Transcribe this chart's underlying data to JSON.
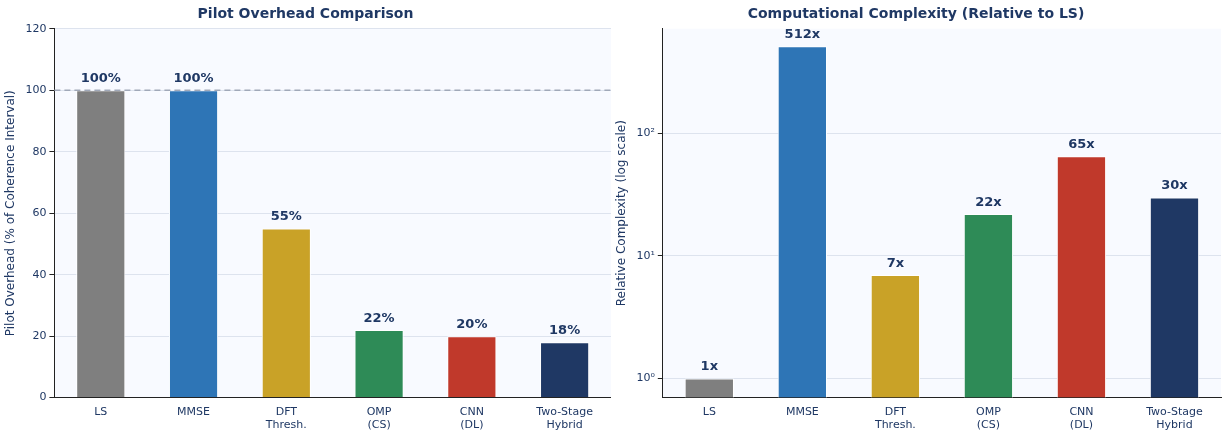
{
  "chart_data": [
    {
      "type": "bar",
      "title": "Pilot Overhead Comparison",
      "ylabel": "Pilot Overhead (% of Coherence Interval)",
      "categories": [
        "LS",
        "MMSE",
        "DFT\nThresh.",
        "OMP\n(CS)",
        "CNN\n(DL)",
        "Two-Stage\nHybrid"
      ],
      "values": [
        100,
        100,
        55,
        22,
        20,
        18
      ],
      "colors": [
        "#7f7f7f",
        "#2e75b6",
        "#c9a227",
        "#2e8b57",
        "#c0392b",
        "#1f3864"
      ],
      "value_labels": [
        "100%",
        "100%",
        "55%",
        "22%",
        "20%",
        "18%"
      ],
      "ylim": [
        0,
        120
      ],
      "yticks": [
        0,
        20,
        40,
        60,
        80,
        100,
        120
      ],
      "grid": "y",
      "ref_lines": [
        {
          "axis": "y",
          "value": 100,
          "color": "#a0a8b8",
          "line_style": "dashed"
        }
      ]
    },
    {
      "type": "bar",
      "title": "Computational Complexity (Relative to LS)",
      "ylabel": "Relative Complexity (log scale)",
      "categories": [
        "LS",
        "MMSE",
        "DFT\nThresh.",
        "OMP\n(CS)",
        "CNN\n(DL)",
        "Two-Stage\nHybrid"
      ],
      "values": [
        1,
        512,
        7,
        22,
        65,
        30
      ],
      "colors": [
        "#7f7f7f",
        "#2e75b6",
        "#c9a227",
        "#2e8b57",
        "#c0392b",
        "#1f3864"
      ],
      "value_labels": [
        "1x",
        "512x",
        "7x",
        "22x",
        "65x",
        "30x"
      ],
      "log": "y",
      "ylim": [
        0.73,
        710
      ],
      "yticks": [
        {
          "value": 1,
          "label": "10⁰"
        },
        {
          "value": 10,
          "label": "10¹"
        },
        {
          "value": 100,
          "label": "10²"
        }
      ],
      "grid": "y"
    }
  ]
}
